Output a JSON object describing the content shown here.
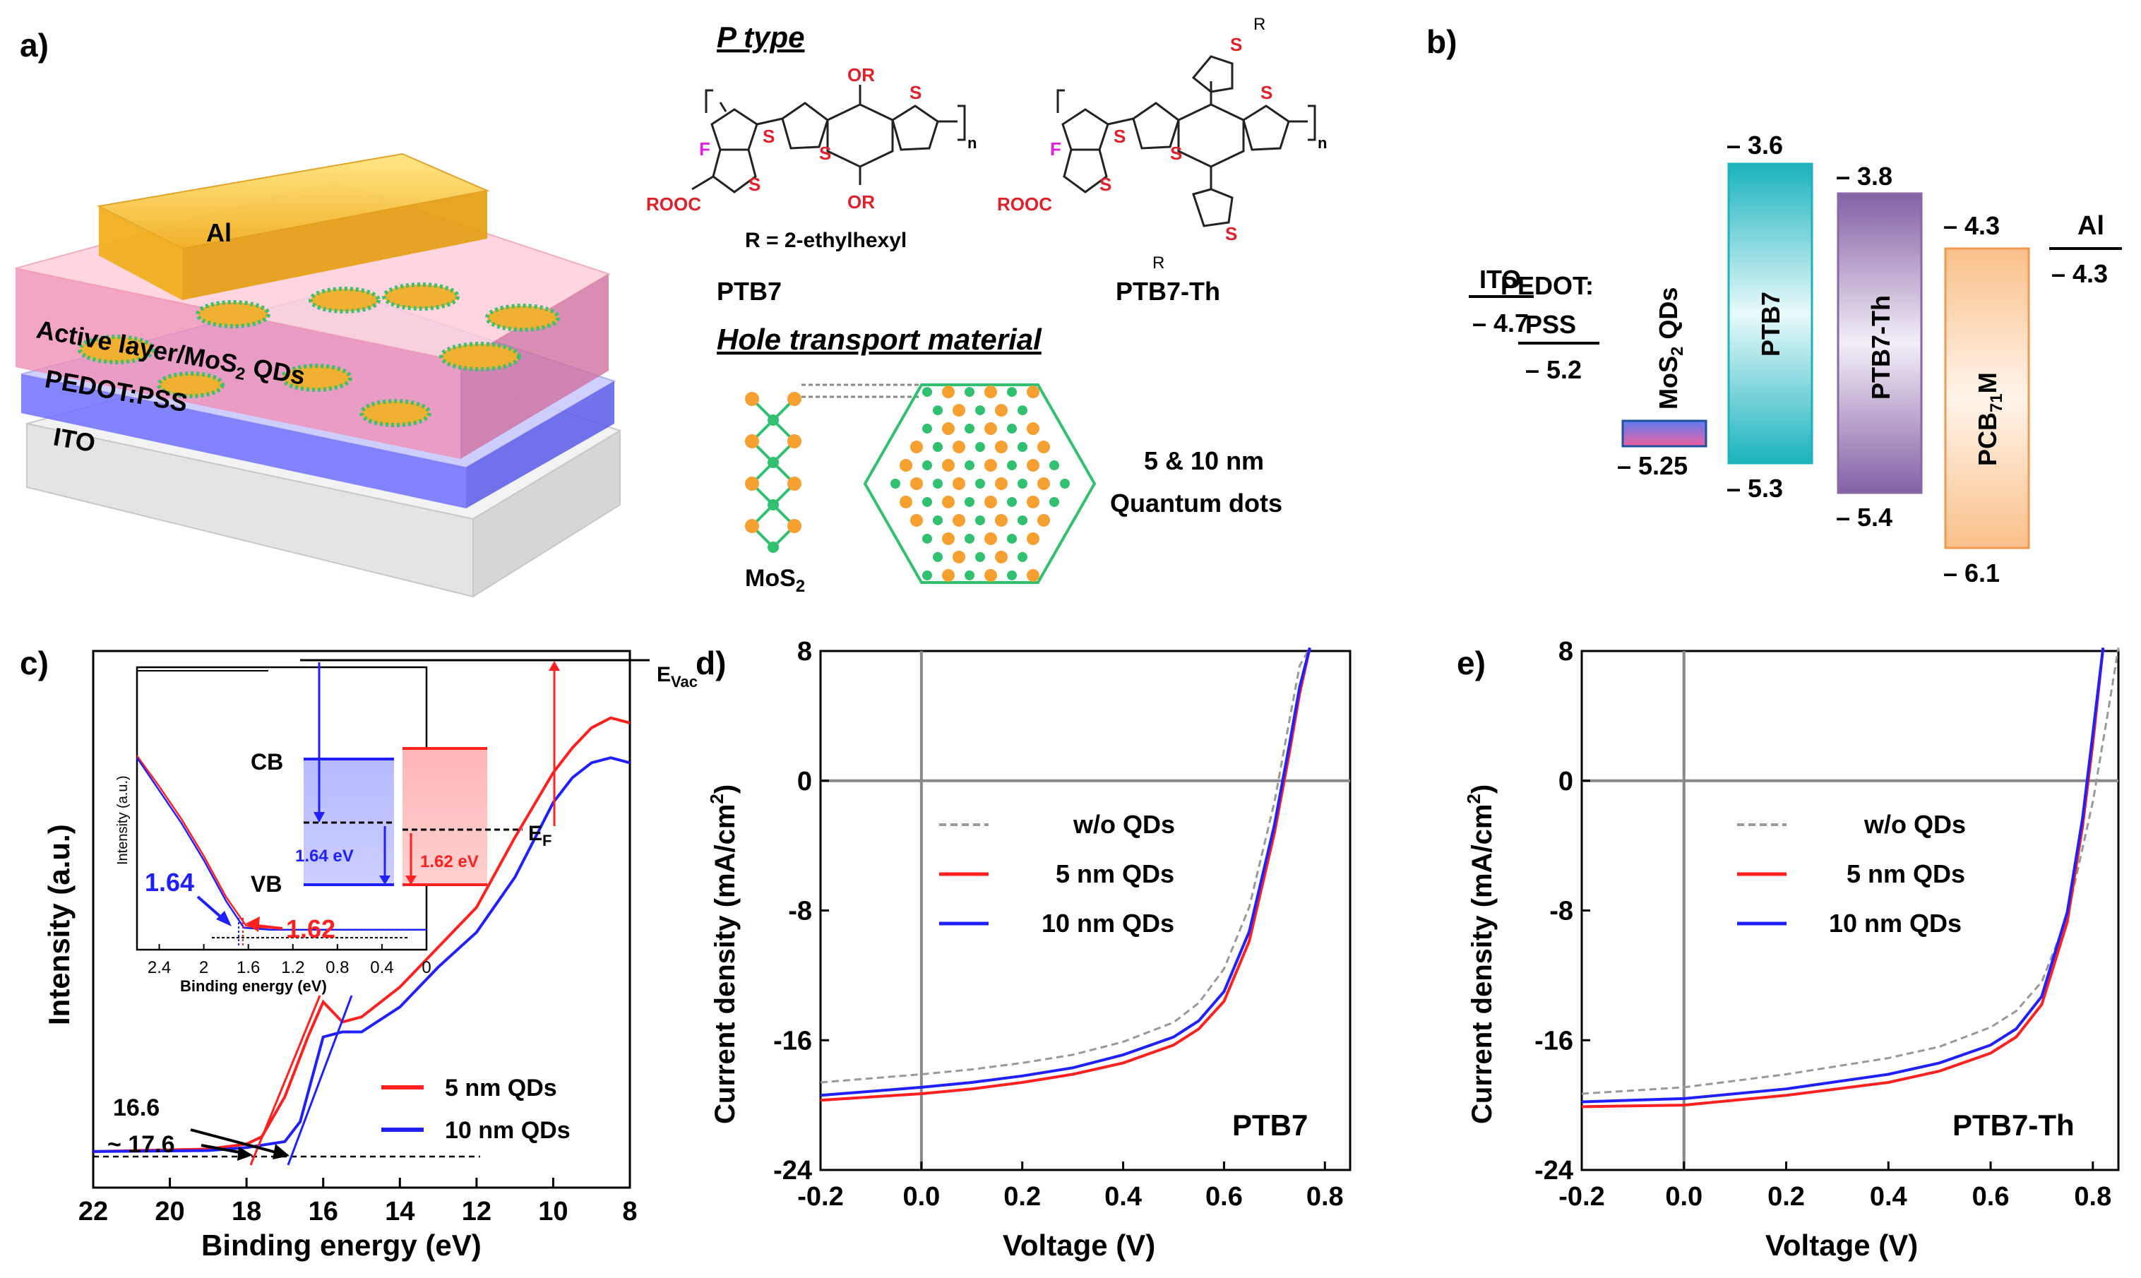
{
  "panels": {
    "a": {
      "label": "a)",
      "layers": {
        "al": "Al",
        "active": "Active layer/MoS",
        "active_sub": "2",
        "active_tail": " QDs",
        "pedot": "PEDOT:PSS",
        "ito": "ITO"
      },
      "p_type_title": "P type",
      "ptb7_name": "PTB7",
      "ptb7th_name": "PTB7-Th",
      "r_note": "R = 2-ethylhexyl",
      "atoms": {
        "f": "F",
        "s": "S",
        "or": "OR",
        "rooc": "ROOC",
        "n": "n",
        "r": "R"
      },
      "htm_title": "Hole transport material",
      "mos2": "MoS",
      "mos2_sub": "2",
      "qd_size": "5 & 10 nm",
      "qd_label": "Quantum dots"
    },
    "b": {
      "label": "b)",
      "levels": {
        "ito": {
          "name": "ITO",
          "value": "– 4.7"
        },
        "pedot": {
          "name1": "PEDOT:",
          "name2": "PSS",
          "value": "– 5.2"
        },
        "mos2": {
          "name": "MoS",
          "sub": "2",
          "tail": " QDs",
          "bottom": "– 5.25"
        },
        "ptb7": {
          "name": "PTB7",
          "top": "– 3.6",
          "bottom": "– 5.3",
          "color": "#27b9c3"
        },
        "ptb7th": {
          "name": "PTB7-Th",
          "top": "– 3.8",
          "bottom": "– 5.4",
          "color": "#8a68a8"
        },
        "pcbm": {
          "name": "PCB",
          "sub": "71",
          "tail": "M",
          "top": "– 4.3",
          "bottom": "– 6.1",
          "color": "#f5a35a"
        },
        "al": {
          "name": "Al",
          "value": "– 4.3"
        }
      }
    },
    "c": {
      "label": "c)",
      "ylabel": "Intensity (a.u.)",
      "xlabel": "Binding energy (eV)",
      "xticks": [
        "22",
        "20",
        "18",
        "16",
        "14",
        "12",
        "10",
        "8"
      ],
      "annotations": {
        "a1": "16.6",
        "a2": "~ 17.6"
      },
      "legend": [
        "5 nm QDs",
        "10 nm QDs"
      ],
      "inset": {
        "ylabel": "Intensity (a.u.)",
        "xlabel": "Binding energy (eV)",
        "xticks": [
          "2.4",
          "2",
          "1.6",
          "1.2",
          "0.8",
          "0.4",
          "0"
        ],
        "v_blue": "1.64",
        "v_red": "1.62",
        "cb": "CB",
        "vb": "VB",
        "evac": "E",
        "evac_sub": "Vac",
        "ef": "E",
        "ef_sub": "F",
        "gap_blue": "1.64 eV",
        "gap_red": "1.62 eV"
      }
    },
    "d": {
      "label": "d)",
      "device": "PTB7",
      "ylabel": "Current density (mA/cm",
      "ylabel_sup": "2",
      "ylabel_end": ")",
      "xlabel": "Voltage (V)",
      "xticks": [
        "-0.2",
        "0.0",
        "0.2",
        "0.4",
        "0.6",
        "0.8"
      ],
      "yticks": [
        "8",
        "0",
        "-8",
        "-16",
        "-24"
      ],
      "legend": [
        "w/o QDs",
        "5 nm QDs",
        "10 nm QDs"
      ]
    },
    "e": {
      "label": "e)",
      "device": "PTB7-Th",
      "ylabel": "Current density (mA/cm",
      "ylabel_sup": "2",
      "ylabel_end": ")",
      "xlabel": "Voltage (V)",
      "xticks": [
        "-0.2",
        "0.0",
        "0.2",
        "0.4",
        "0.6",
        "0.8"
      ],
      "yticks": [
        "8",
        "0",
        "-8",
        "-16",
        "-24"
      ],
      "legend": [
        "w/o QDs",
        "5 nm QDs",
        "10 nm QDs"
      ]
    }
  },
  "colors": {
    "red": "#ff2020",
    "blue": "#2020ff",
    "gray": "#999999"
  },
  "chart_data": [
    {
      "id": "ups",
      "type": "line",
      "title": "",
      "xlabel": "Binding energy (eV)",
      "ylabel": "Intensity (a.u.)",
      "xlim": [
        22,
        8
      ],
      "ylim": [
        0,
        100
      ],
      "series": [
        {
          "name": "5 nm QDs",
          "x": [
            22,
            19,
            18,
            17.6,
            17,
            16.4,
            16,
            15.5,
            15,
            14,
            13,
            12,
            11,
            10,
            9.5,
            9,
            8.5,
            8
          ],
          "values": [
            1,
            1.5,
            2.5,
            4,
            12,
            24,
            31,
            27,
            28,
            34,
            42,
            50,
            64,
            77,
            82,
            86,
            88,
            87
          ]
        },
        {
          "name": "10 nm QDs",
          "x": [
            22,
            19,
            18,
            17,
            16.6,
            16,
            15.5,
            15,
            14,
            13,
            12,
            11,
            10,
            9.5,
            9,
            8.5,
            8
          ],
          "values": [
            1,
            1.2,
            1.8,
            3,
            7,
            24,
            25,
            25,
            30,
            38,
            45,
            56,
            71,
            76,
            79,
            80,
            79
          ]
        }
      ],
      "annotations": [
        {
          "text": "16.6",
          "x": 16.6
        },
        {
          "text": "~ 17.6",
          "x": 17.6
        }
      ]
    },
    {
      "id": "ups_inset",
      "type": "line",
      "xlabel": "Binding energy (eV)",
      "ylabel": "Intensity (a.u.)",
      "xlim": [
        2.6,
        0
      ],
      "ylim": [
        0,
        100
      ],
      "series": [
        {
          "name": "5 nm QDs",
          "x": [
            2.6,
            2.4,
            2.2,
            2.0,
            1.8,
            1.62,
            1.4,
            0
          ],
          "values": [
            93,
            78,
            62,
            44,
            24,
            10,
            8,
            8
          ]
        },
        {
          "name": "10 nm QDs",
          "x": [
            2.6,
            2.4,
            2.2,
            2.0,
            1.8,
            1.64,
            1.4,
            0
          ],
          "values": [
            92,
            76,
            60,
            42,
            22,
            9,
            8,
            8
          ]
        }
      ],
      "annotations": [
        {
          "text": "1.64",
          "x": 1.64
        },
        {
          "text": "1.62",
          "x": 1.62
        }
      ]
    },
    {
      "id": "jv_ptb7",
      "type": "line",
      "title": "PTB7",
      "xlabel": "Voltage (V)",
      "ylabel": "Current density (mA/cm2)",
      "xlim": [
        -0.2,
        0.85
      ],
      "ylim": [
        -24,
        8
      ],
      "series": [
        {
          "name": "w/o QDs",
          "x": [
            -0.2,
            0.0,
            0.1,
            0.2,
            0.3,
            0.4,
            0.5,
            0.55,
            0.6,
            0.65,
            0.7,
            0.73,
            0.75,
            0.77
          ],
          "values": [
            -18.6,
            -18.1,
            -17.8,
            -17.4,
            -16.9,
            -16.1,
            -14.9,
            -13.7,
            -11.6,
            -7.8,
            -1.3,
            3.8,
            7.1,
            8.2
          ]
        },
        {
          "name": "5 nm QDs",
          "x": [
            -0.2,
            0.0,
            0.1,
            0.2,
            0.3,
            0.4,
            0.5,
            0.55,
            0.6,
            0.65,
            0.7,
            0.73,
            0.75,
            0.77
          ],
          "values": [
            -19.7,
            -19.3,
            -19.0,
            -18.6,
            -18.1,
            -17.4,
            -16.3,
            -15.3,
            -13.6,
            -9.9,
            -3.2,
            1.8,
            5.4,
            8.2
          ]
        },
        {
          "name": "10 nm QDs",
          "x": [
            -0.2,
            0.0,
            0.1,
            0.2,
            0.3,
            0.4,
            0.5,
            0.55,
            0.6,
            0.65,
            0.7,
            0.73,
            0.75,
            0.77
          ],
          "values": [
            -19.4,
            -18.9,
            -18.6,
            -18.2,
            -17.7,
            -16.9,
            -15.8,
            -14.8,
            -13.0,
            -9.3,
            -2.7,
            2.3,
            5.8,
            8.2
          ]
        }
      ]
    },
    {
      "id": "jv_ptb7th",
      "type": "line",
      "title": "PTB7-Th",
      "xlabel": "Voltage (V)",
      "ylabel": "Current density (mA/cm2)",
      "xlim": [
        -0.2,
        0.85
      ],
      "ylim": [
        -24,
        8
      ],
      "series": [
        {
          "name": "w/o QDs",
          "x": [
            -0.2,
            0.0,
            0.2,
            0.4,
            0.5,
            0.6,
            0.65,
            0.7,
            0.75,
            0.8,
            0.83,
            0.85
          ],
          "values": [
            -19.3,
            -18.9,
            -18.1,
            -17.1,
            -16.4,
            -15.2,
            -14.2,
            -12.4,
            -8.4,
            -1.3,
            4.3,
            8.2
          ]
        },
        {
          "name": "5 nm QDs",
          "x": [
            -0.2,
            0.0,
            0.2,
            0.4,
            0.5,
            0.6,
            0.65,
            0.7,
            0.75,
            0.78,
            0.8,
            0.82
          ],
          "values": [
            -20.1,
            -20.0,
            -19.4,
            -18.6,
            -17.9,
            -16.8,
            -15.8,
            -13.8,
            -8.7,
            -2.8,
            2.3,
            8.2
          ]
        },
        {
          "name": "10 nm QDs",
          "x": [
            -0.2,
            0.0,
            0.2,
            0.4,
            0.5,
            0.6,
            0.65,
            0.7,
            0.75,
            0.78,
            0.8,
            0.82
          ],
          "values": [
            -19.8,
            -19.6,
            -19.0,
            -18.1,
            -17.4,
            -16.3,
            -15.3,
            -13.3,
            -8.1,
            -2.3,
            2.9,
            8.2
          ]
        }
      ]
    }
  ]
}
